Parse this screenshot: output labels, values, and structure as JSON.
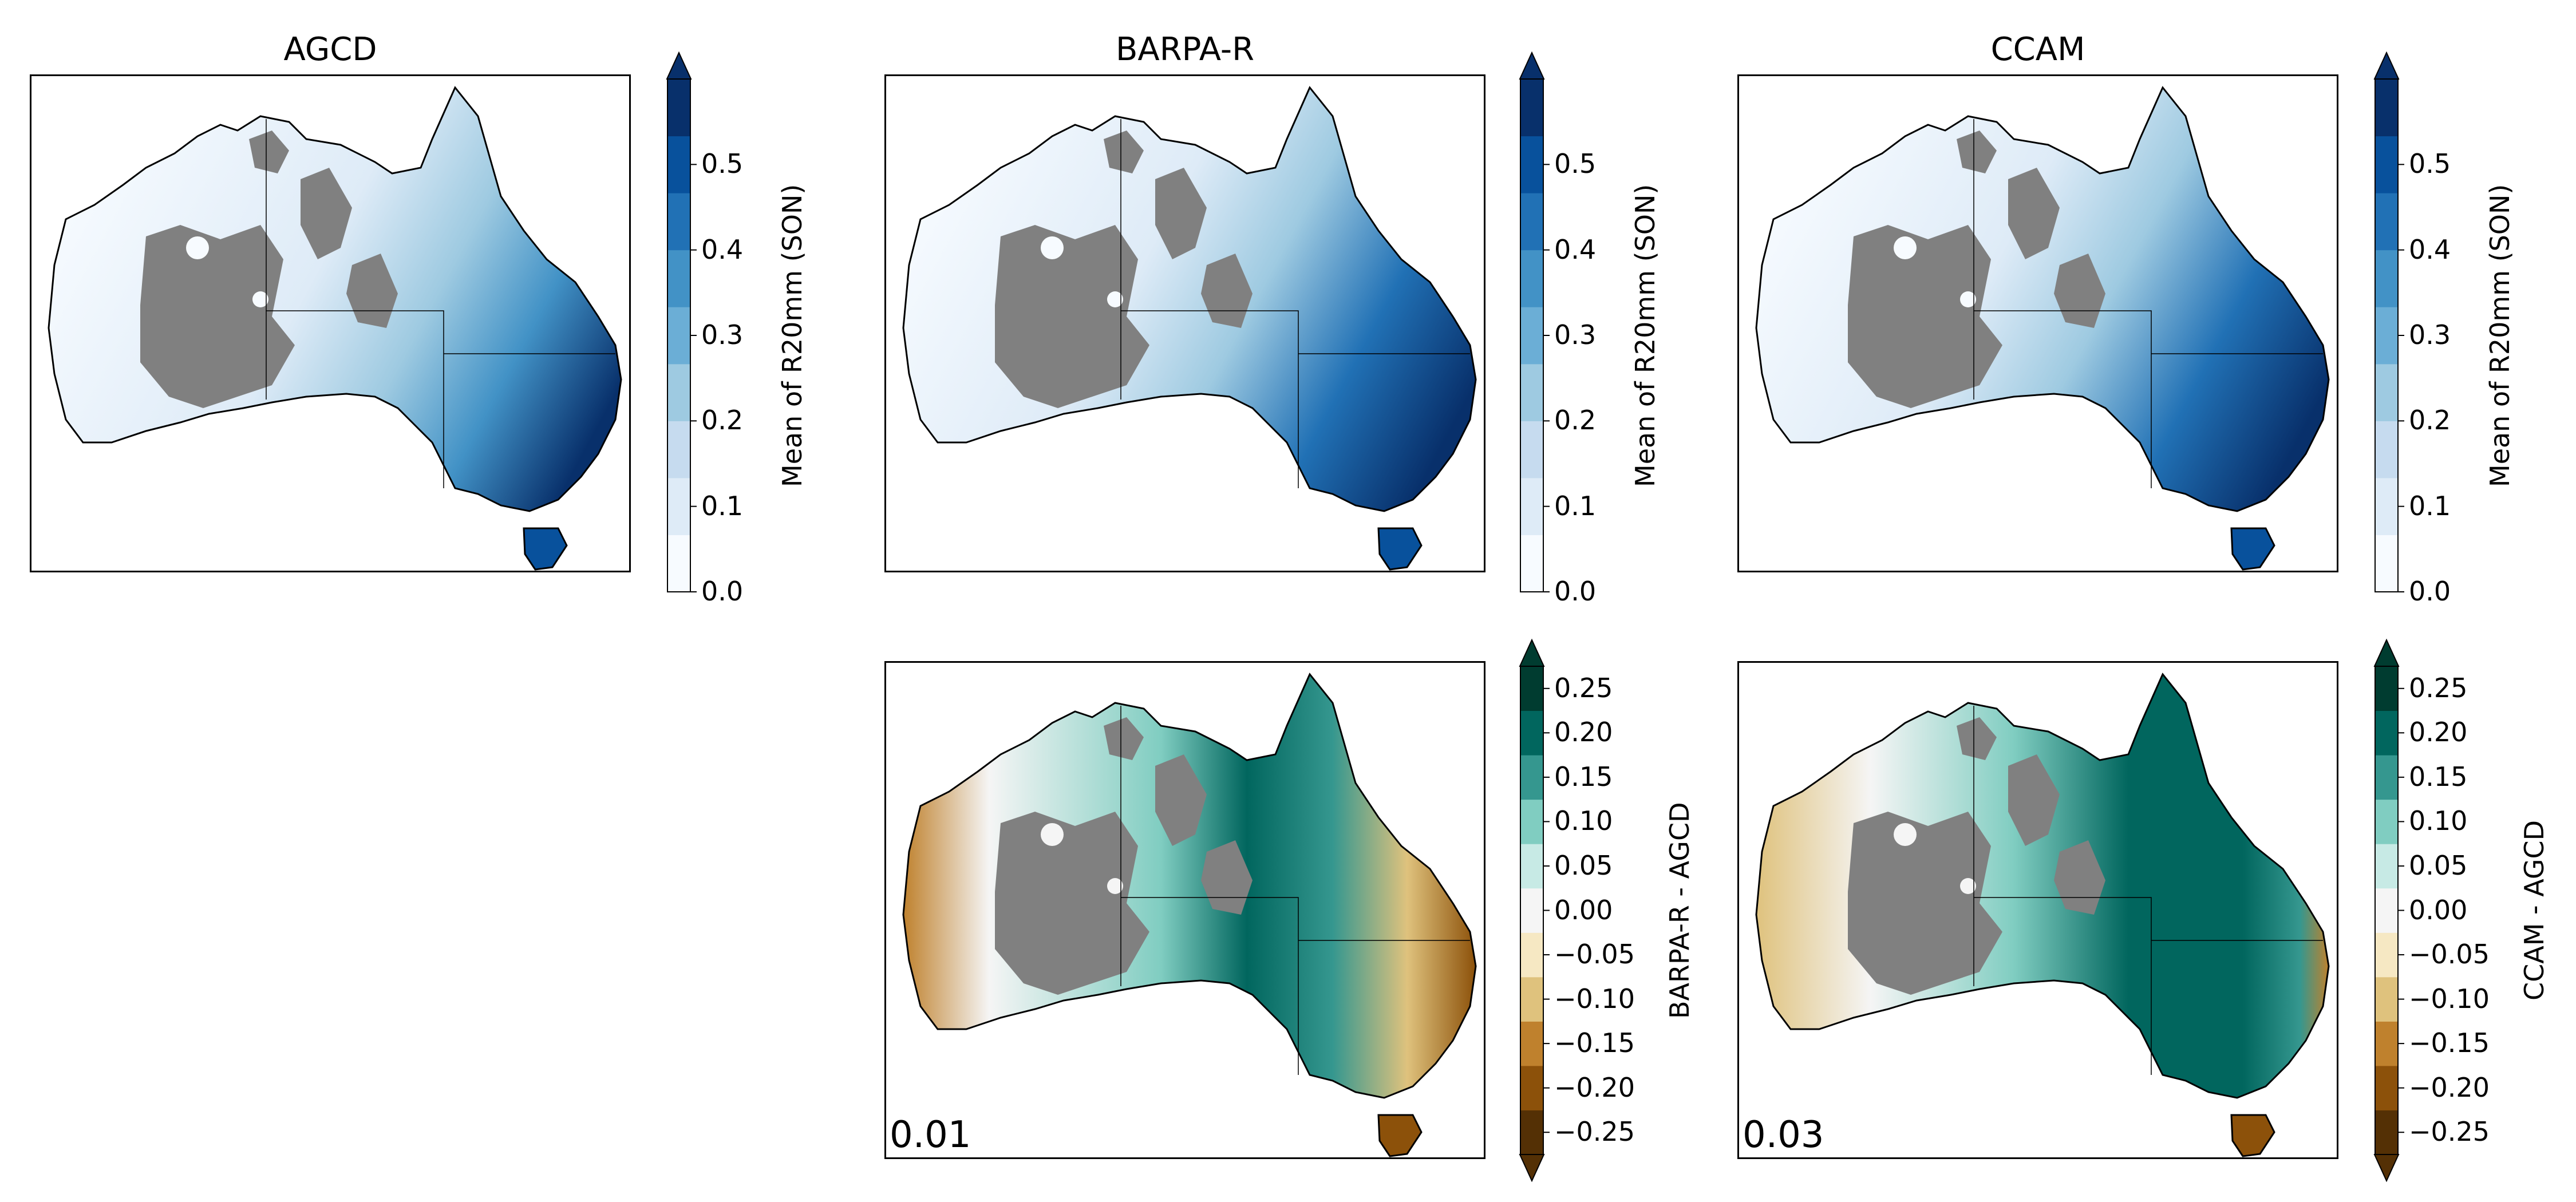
{
  "panels": [
    {
      "id": "agcd",
      "title": "AGCD",
      "fill": "seq",
      "inset": ""
    },
    {
      "id": "barpa",
      "title": "BARPA-R",
      "fill": "seq",
      "inset": ""
    },
    {
      "id": "ccam",
      "title": "CCAM",
      "fill": "seq",
      "inset": ""
    },
    {
      "id": "barpa-diff",
      "title": "",
      "fill": "div",
      "inset": "0.01"
    },
    {
      "id": "ccam-diff",
      "title": "",
      "fill": "div",
      "inset": "0.03"
    }
  ],
  "colorbars": {
    "sequential": {
      "label": "Mean of R20mm (SON)",
      "range": [
        0.0,
        0.6
      ],
      "ticks": [
        "0.0",
        "0.1",
        "0.2",
        "0.3",
        "0.4",
        "0.5"
      ],
      "tick_values": [
        0.0,
        0.1,
        0.2,
        0.3,
        0.4,
        0.5
      ],
      "colors": [
        "#f7fbff",
        "#deebf7",
        "#c6dbef",
        "#9ecae1",
        "#6baed6",
        "#4292c6",
        "#2171b5",
        "#08519c",
        "#08306b"
      ],
      "extend": "max"
    },
    "diverging_barpa": {
      "label": "BARPA-R - AGCD",
      "range": [
        -0.275,
        0.275
      ],
      "ticks": [
        "0.25",
        "0.20",
        "0.15",
        "0.10",
        "0.05",
        "0.00",
        "−0.05",
        "−0.10",
        "−0.15",
        "−0.20",
        "−0.25"
      ],
      "tick_values": [
        0.25,
        0.2,
        0.15,
        0.1,
        0.05,
        0.0,
        -0.05,
        -0.1,
        -0.15,
        -0.2,
        -0.25
      ],
      "colors": [
        "#543005",
        "#8c510a",
        "#bf812d",
        "#dfc27d",
        "#f6e8c3",
        "#f5f5f5",
        "#c7eae5",
        "#80cdc1",
        "#35978f",
        "#01665e",
        "#003c30"
      ],
      "extend": "both"
    },
    "diverging_ccam": {
      "label": "CCAM - AGCD",
      "range": [
        -0.275,
        0.275
      ],
      "ticks": [
        "0.25",
        "0.20",
        "0.15",
        "0.10",
        "0.05",
        "0.00",
        "−0.05",
        "−0.10",
        "−0.15",
        "−0.20",
        "−0.25"
      ],
      "tick_values": [
        0.25,
        0.2,
        0.15,
        0.1,
        0.05,
        0.0,
        -0.05,
        -0.1,
        -0.15,
        -0.2,
        -0.25
      ],
      "colors": [
        "#543005",
        "#8c510a",
        "#bf812d",
        "#dfc27d",
        "#f6e8c3",
        "#f5f5f5",
        "#c7eae5",
        "#80cdc1",
        "#35978f",
        "#01665e",
        "#003c30"
      ],
      "extend": "both"
    }
  },
  "colors": {
    "masked": "#808080",
    "coast": "#000000"
  }
}
